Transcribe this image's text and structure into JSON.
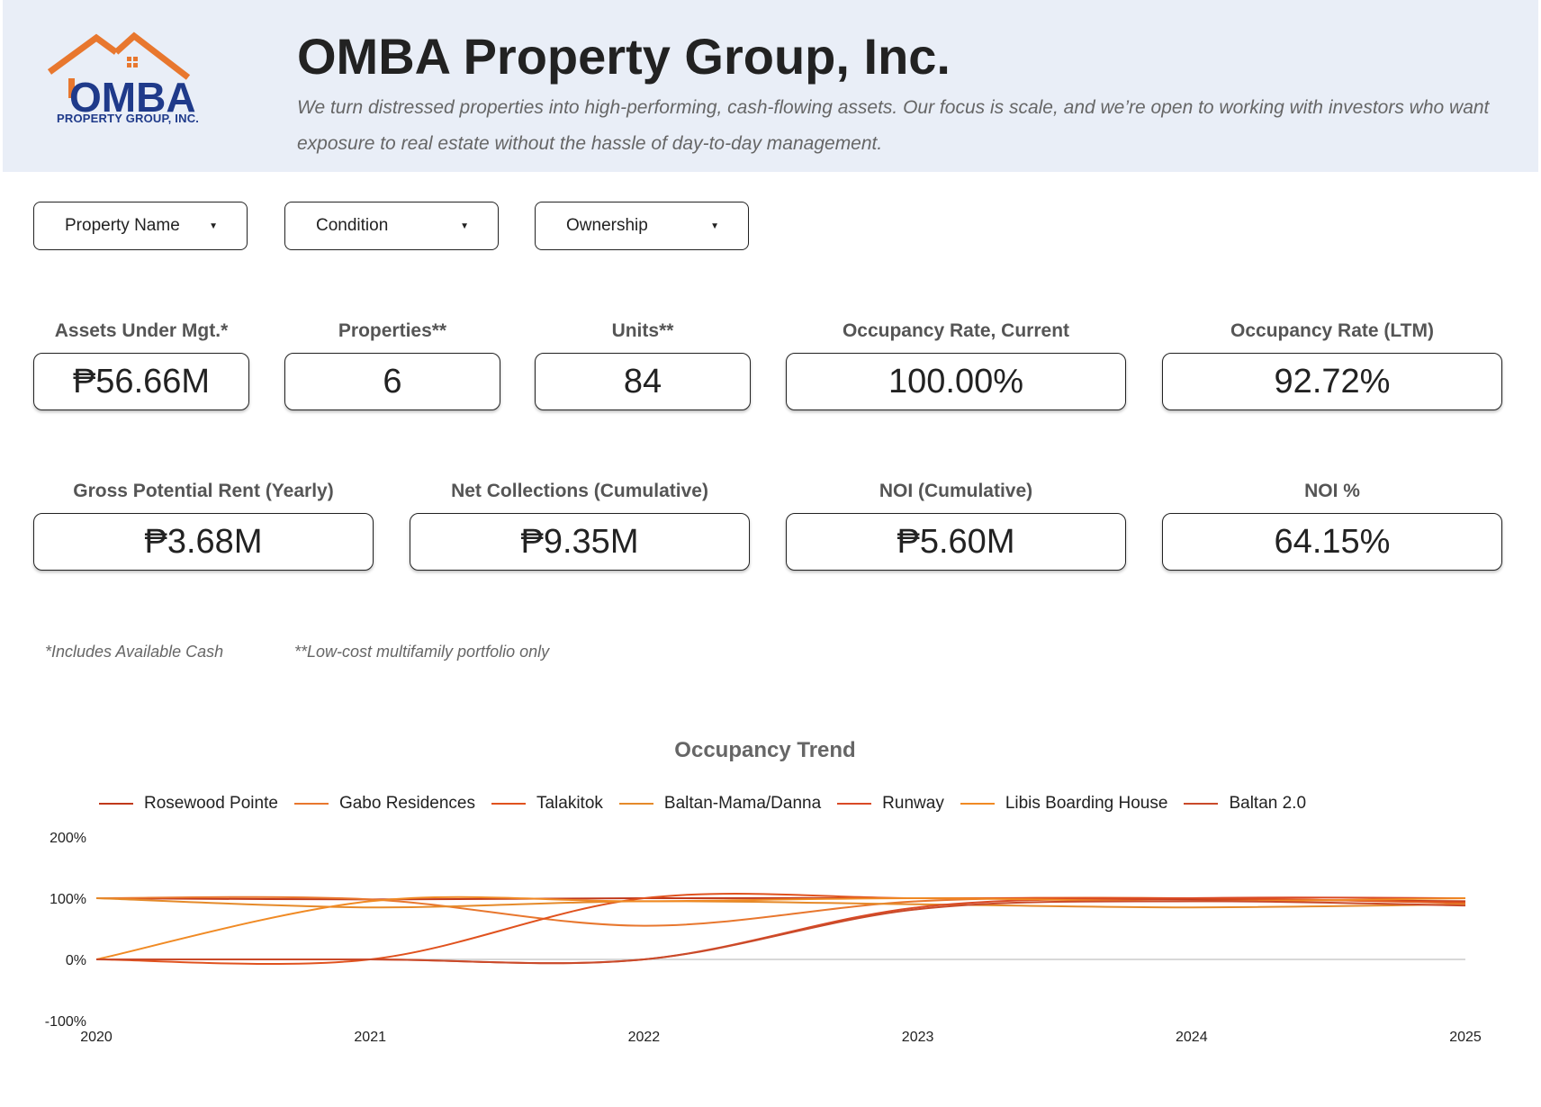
{
  "header": {
    "logo": {
      "name": "OMBA",
      "sub": "PROPERTY GROUP, INC."
    },
    "title": "OMBA Property Group, Inc.",
    "tagline": "We turn distressed properties into high-performing, cash-flowing assets. Our focus is scale, and we’re open to working with investors who want exposure to real estate without the hassle of day-to-day management."
  },
  "filters": [
    {
      "label": "Property Name"
    },
    {
      "label": "Condition"
    },
    {
      "label": "Ownership"
    }
  ],
  "kpis": [
    {
      "label": "Assets Under Mgt.*",
      "value": "₱56.66M"
    },
    {
      "label": "Properties**",
      "value": "6"
    },
    {
      "label": "Units**",
      "value": "84"
    },
    {
      "label": "Occupancy Rate, Current",
      "value": "100.00%"
    },
    {
      "label": "Occupancy Rate (LTM)",
      "value": "92.72%"
    },
    {
      "label": "Gross Potential Rent (Yearly)",
      "value": "₱3.68M"
    },
    {
      "label": "Net Collections (Cumulative)",
      "value": "₱9.35M"
    },
    {
      "label": "NOI (Cumulative)",
      "value": "₱5.60M"
    },
    {
      "label": "NOI %",
      "value": "64.15%"
    }
  ],
  "notes": {
    "assets": "*Includes Available Cash",
    "portfolio": "**Low-cost multifamily portfolio only"
  },
  "colors": {
    "accent": "#e8772e",
    "brand_blue": "#1f3a8a",
    "header_bg": "#e9eef7"
  },
  "chart_data": {
    "type": "line",
    "title": "Occupancy Trend",
    "x": [
      2020,
      2021,
      2022,
      2023,
      2024,
      2025
    ],
    "ylim": [
      -100,
      200
    ],
    "yticks": [
      "200%",
      "100%",
      "0%",
      "-100%"
    ],
    "ytick_values": [
      200,
      100,
      0,
      -100
    ],
    "xticks": [
      "2020",
      "2021",
      "2022",
      "2023",
      "2024",
      "2025"
    ],
    "legend_position": "top",
    "series": [
      {
        "name": "Rosewood Pointe",
        "color": "#c0391b",
        "values": [
          100,
          98,
          100,
          100,
          98,
          95
        ]
      },
      {
        "name": "Gabo Residences",
        "color": "#e8772e",
        "values": [
          100,
          98,
          55,
          95,
          100,
          92
        ]
      },
      {
        "name": "Talakitok",
        "color": "#e0521e",
        "values": [
          0,
          0,
          100,
          100,
          100,
          93
        ]
      },
      {
        "name": "Baltan-Mama/Danna",
        "color": "#e58a2a",
        "values": [
          100,
          85,
          95,
          90,
          85,
          90
        ]
      },
      {
        "name": "Runway",
        "color": "#d94a26",
        "values": [
          0,
          0,
          0,
          85,
          100,
          100
        ]
      },
      {
        "name": "Libis Boarding House",
        "color": "#f08a24",
        "values": [
          0,
          95,
          95,
          100,
          95,
          100
        ]
      },
      {
        "name": "Baltan 2.0",
        "color": "#c94a2a",
        "values": [
          0,
          0,
          0,
          82,
          95,
          88
        ]
      }
    ]
  }
}
